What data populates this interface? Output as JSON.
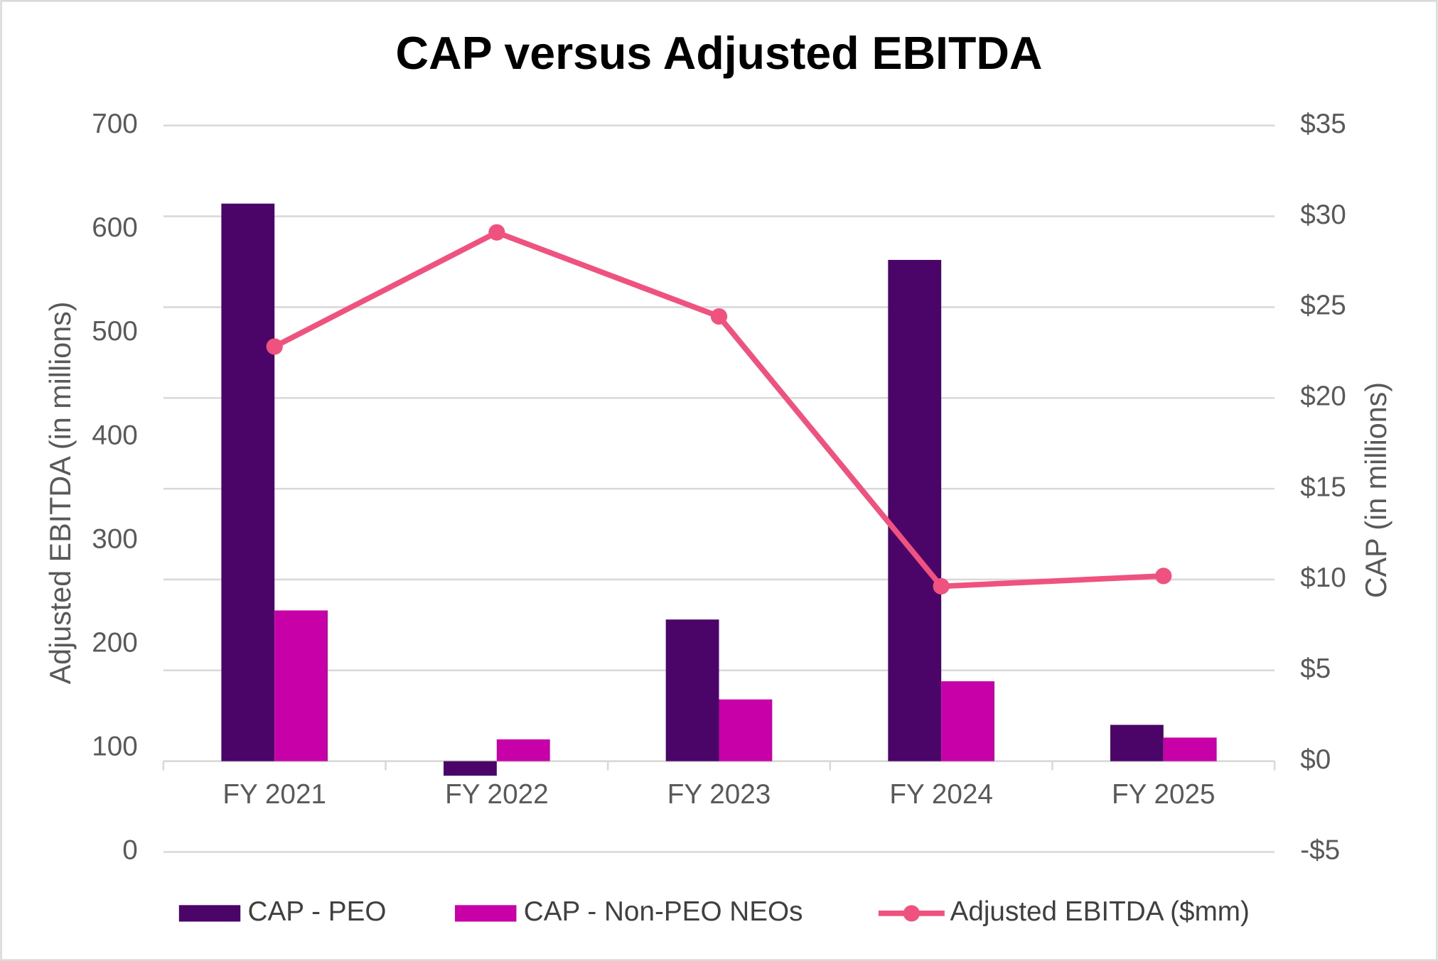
{
  "chart_data": {
    "type": "bar",
    "title": "CAP versus Adjusted EBITDA",
    "y_label": "Adjusted EBITDA (in millions)",
    "y2_label": "CAP (in millions)",
    "categories": [
      "FY 2021",
      "FY 2022",
      "FY 2023",
      "FY 2024",
      "FY 2025"
    ],
    "series": [
      {
        "name": "CAP - PEO",
        "type": "bar",
        "axis": "y2",
        "color": "#4b0569",
        "values": [
          30.7,
          -0.8,
          7.8,
          27.6,
          2.0
        ]
      },
      {
        "name": "CAP - Non-PEO NEOs",
        "type": "bar",
        "axis": "y2",
        "color": "#c800a8",
        "values": [
          8.3,
          1.2,
          3.4,
          4.4,
          1.3
        ]
      },
      {
        "name": "Adjusted EBITDA ($mm)",
        "type": "line",
        "axis": "y",
        "color": "#f0527f",
        "values": [
          487,
          597,
          516,
          256,
          266
        ]
      }
    ],
    "ylim": [
      0,
      700
    ],
    "yticks": [
      0,
      100,
      200,
      300,
      400,
      500,
      600,
      700
    ],
    "y2lim": [
      -5,
      35
    ],
    "y2ticks": [
      {
        "value": -5,
        "label": "-$5"
      },
      {
        "value": 0,
        "label": "$0"
      },
      {
        "value": 5,
        "label": "$5"
      },
      {
        "value": 10,
        "label": "$10"
      },
      {
        "value": 15,
        "label": "$15"
      },
      {
        "value": 20,
        "label": "$20"
      },
      {
        "value": 25,
        "label": "$25"
      },
      {
        "value": 30,
        "label": "$30"
      },
      {
        "value": 35,
        "label": "$35"
      }
    ],
    "grid": true,
    "legend": "bottom"
  }
}
